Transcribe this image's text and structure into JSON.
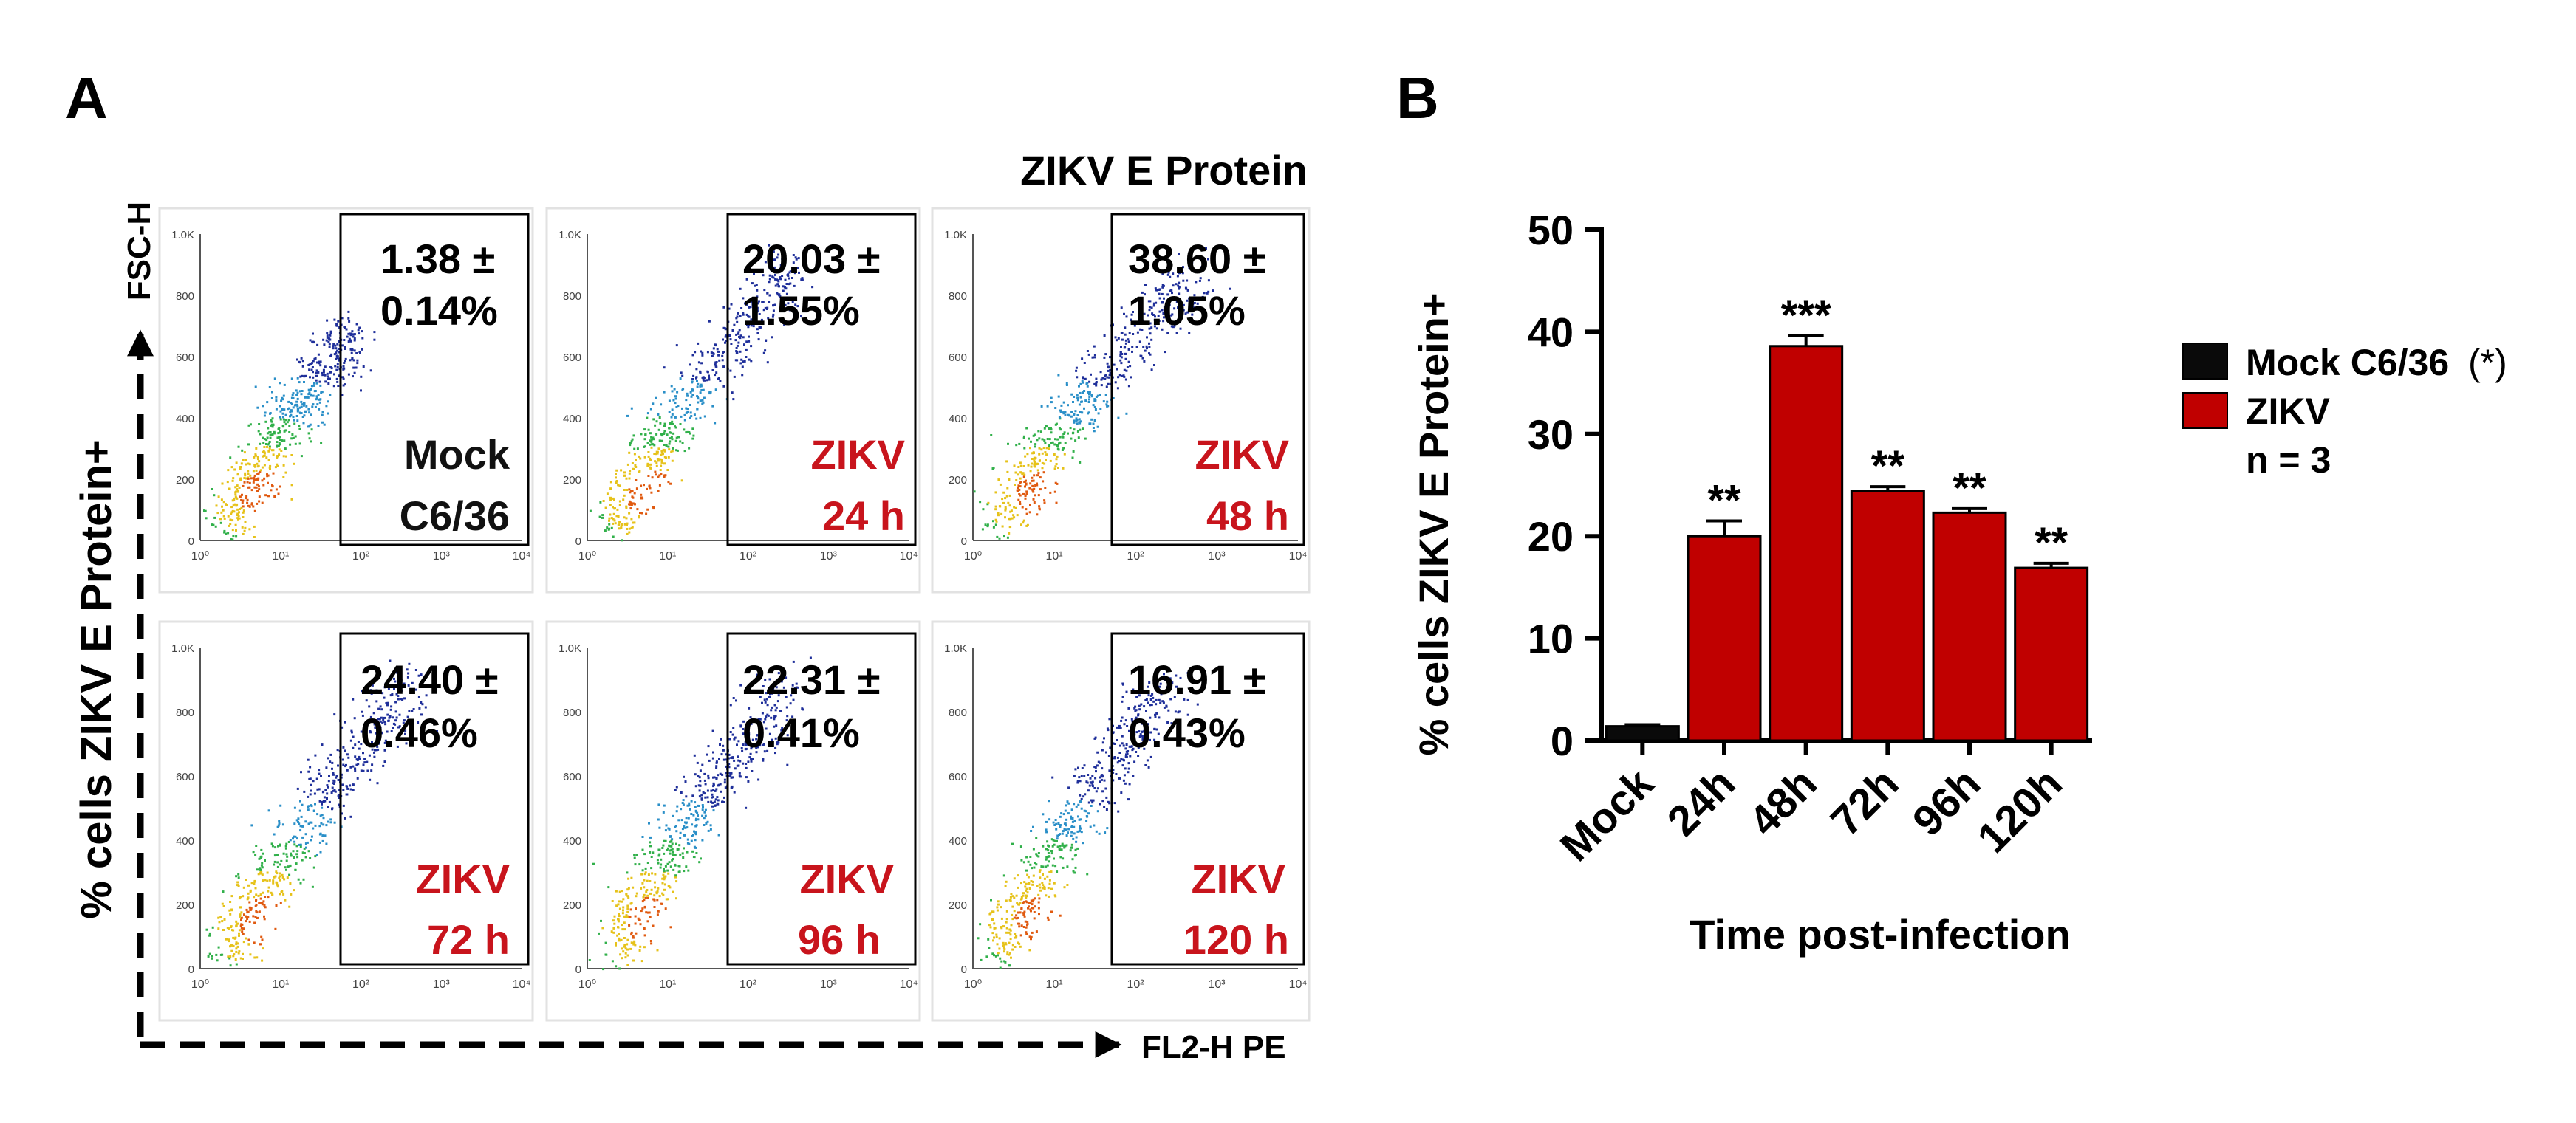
{
  "panel_a": {
    "label": "A",
    "header": "ZIKV E Protein",
    "y_axis_label": "% cells ZIKV E Protein+",
    "y_channel": "FSC-H",
    "x_channel": "FL2-H PE",
    "y_ticks": [
      "1.0K",
      "800",
      "600",
      "400",
      "200",
      "0"
    ],
    "plots": [
      {
        "pct_line1": "1.38 ±",
        "pct_line2": "0.14%",
        "cond_line1": "Mock",
        "cond_line2": "C6/36",
        "cond_color": "#111111"
      },
      {
        "pct_line1": "20.03 ±",
        "pct_line2": "1.55%",
        "cond_line1": "ZIKV",
        "cond_line2": "24 h",
        "cond_color": "#c8141c"
      },
      {
        "pct_line1": "38.60 ±",
        "pct_line2": "1.05%",
        "cond_line1": "ZIKV",
        "cond_line2": "48 h",
        "cond_color": "#c8141c"
      },
      {
        "pct_line1": "24.40 ±",
        "pct_line2": "0.46%",
        "cond_line1": "ZIKV",
        "cond_line2": "72 h",
        "cond_color": "#c8141c"
      },
      {
        "pct_line1": "22.31 ±",
        "pct_line2": "0.41%",
        "cond_line1": "ZIKV",
        "cond_line2": "96 h",
        "cond_color": "#c8141c"
      },
      {
        "pct_line1": "16.91 ±",
        "pct_line2": "0.43%",
        "cond_line1": "ZIKV",
        "cond_line2": "120 h",
        "cond_color": "#c8141c"
      }
    ]
  },
  "panel_b": {
    "label": "B"
  },
  "chart_data": {
    "type": "bar",
    "title": "",
    "xlabel": "Time post-infection",
    "ylabel": "% cells ZIKV E Protein+",
    "ylim": [
      0,
      50
    ],
    "yticks": [
      0,
      10,
      20,
      30,
      40,
      50
    ],
    "categories": [
      "Mock",
      "24h",
      "48h",
      "72h",
      "96h",
      "120h"
    ],
    "values": [
      1.4,
      20.0,
      38.6,
      24.4,
      22.3,
      16.9
    ],
    "errors": [
      0.15,
      1.5,
      1.0,
      0.45,
      0.4,
      0.45
    ],
    "significance": [
      "",
      "**",
      "***",
      "**",
      "**",
      "**"
    ],
    "bar_colors": [
      "#0a0a0a",
      "#c00000",
      "#c00000",
      "#c00000",
      "#c00000",
      "#c00000"
    ],
    "legend": {
      "position": "right",
      "entries": [
        {
          "label": "Mock C6/36",
          "note": "(*)",
          "color": "#0a0a0a"
        },
        {
          "label": "ZIKV",
          "color": "#c00000"
        }
      ],
      "n_label": "n = 3"
    }
  }
}
